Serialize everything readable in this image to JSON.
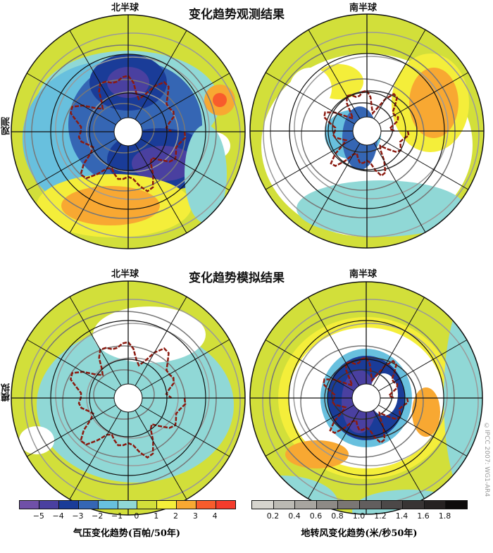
{
  "titles": {
    "observed": "变化趋势观测结果",
    "modeled": "变化趋势模拟结果"
  },
  "hemispheres": {
    "north": "北半球",
    "south": "南半球"
  },
  "row_labels": {
    "observed": "观测",
    "modeled": "模拟"
  },
  "pressure_colorbar": {
    "label": "气压变化趋势(百帕/50年)",
    "ticks": [
      "−5",
      "−4",
      "−3",
      "−2",
      "−1",
      "0",
      "1",
      "2",
      "3",
      "4"
    ],
    "colors": [
      "#7050a8",
      "#4a40a0",
      "#1a3c98",
      "#3566b4",
      "#68c0de",
      "#90d8d6",
      "#d2df3a",
      "#f4ee3a",
      "#f8a832",
      "#f85c2c",
      "#f43c2c"
    ]
  },
  "wind_colorbar": {
    "label": "地转风变化趋势(米/秒50年)",
    "ticks": [
      "0.2",
      "0.4",
      "0.6",
      "0.8",
      "1.0",
      "1.2",
      "1.4",
      "1.6",
      "1.8"
    ],
    "colors": [
      "#d6d4ce",
      "#bcbab4",
      "#a8a5a0",
      "#8e8a86",
      "#7a7674",
      "#625e5e",
      "#4c4848",
      "#383434",
      "#262222",
      "#0e0c0c"
    ]
  },
  "copyright": "©IPCC 2007: WG1-AR4"
}
